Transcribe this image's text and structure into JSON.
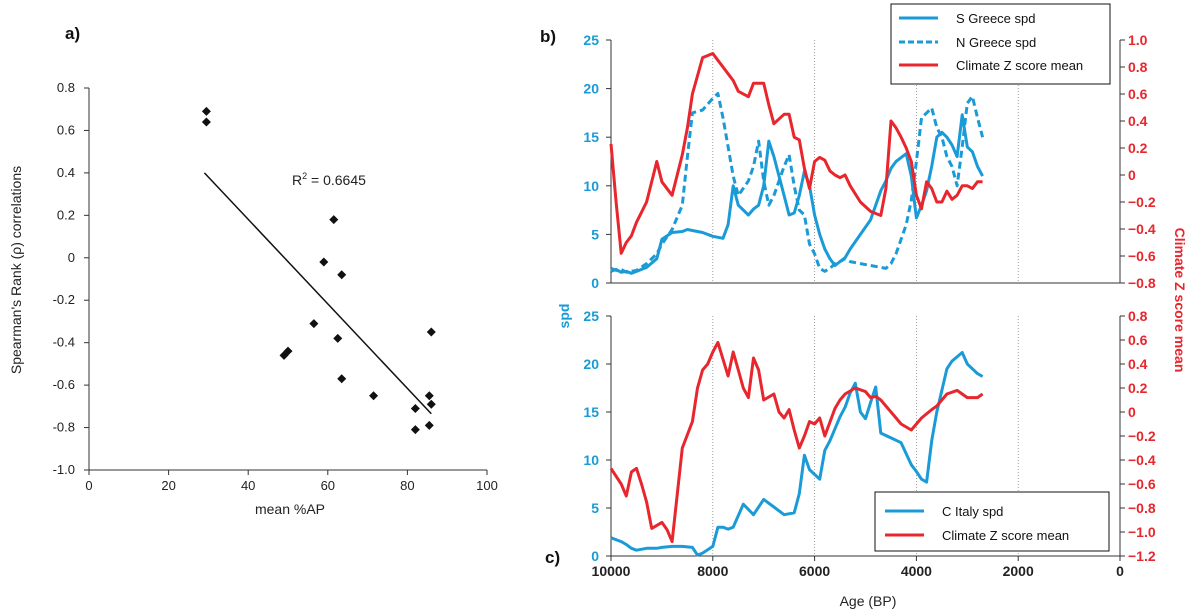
{
  "colors": {
    "blue": "#1a9bd7",
    "red": "#e8262d",
    "black": "#111111",
    "grid": "#888888"
  },
  "chart_data": [
    {
      "id": "a",
      "type": "scatter",
      "panel_label": "a)",
      "xlabel": "mean %AP",
      "ylabel": "Spearman's Rank (ρ) correlations",
      "xlim": [
        0,
        100
      ],
      "ylim": [
        -1.0,
        0.8
      ],
      "xticks": [
        "0",
        "20",
        "40",
        "60",
        "80",
        "100"
      ],
      "yticks": [
        "0.8",
        "0.6",
        "0.4",
        "0.2",
        "0",
        "-0.2",
        "-0.4",
        "-0.6",
        "-0.8",
        "-1.0"
      ],
      "points": [
        {
          "x": 29.5,
          "y": 0.69
        },
        {
          "x": 29.5,
          "y": 0.64
        },
        {
          "x": 49,
          "y": -0.46
        },
        {
          "x": 50,
          "y": -0.44
        },
        {
          "x": 56.5,
          "y": -0.31
        },
        {
          "x": 59,
          "y": -0.02
        },
        {
          "x": 61.5,
          "y": 0.18
        },
        {
          "x": 62.5,
          "y": -0.38
        },
        {
          "x": 63.5,
          "y": -0.08
        },
        {
          "x": 63.5,
          "y": -0.57
        },
        {
          "x": 71.5,
          "y": -0.65
        },
        {
          "x": 82,
          "y": -0.71
        },
        {
          "x": 82,
          "y": -0.81
        },
        {
          "x": 85.5,
          "y": -0.65
        },
        {
          "x": 85.5,
          "y": -0.79
        },
        {
          "x": 86,
          "y": -0.69
        },
        {
          "x": 86,
          "y": -0.35
        }
      ],
      "trendline": {
        "x": [
          29,
          86
        ],
        "y": [
          0.4,
          -0.735
        ]
      },
      "annotation": {
        "text_main": "R",
        "text_sup": "2",
        "text_rest": " = 0.6645"
      }
    },
    {
      "id": "b",
      "type": "line",
      "panel_label": "b)",
      "xlim": [
        10000,
        0
      ],
      "ylim_left": [
        0,
        25
      ],
      "ylim_right": [
        -0.8,
        1.0
      ],
      "yticks_left": [
        "0",
        "5",
        "10",
        "15",
        "20",
        "25"
      ],
      "yticks_right": [
        "1.0",
        "0.8",
        "0.6",
        "0.4",
        "0.2",
        "0",
        "-0.2",
        "-0.4",
        "-0.6",
        "-0.8"
      ],
      "gridlines_x": [
        8000,
        6000,
        4000,
        2000
      ],
      "legend": {
        "placement": "top-right"
      },
      "series": [
        {
          "name": "S Greece spd",
          "axis": "left",
          "color": "blue",
          "style": "solid",
          "x": [
            10000,
            9900,
            9800,
            9700,
            9600,
            9500,
            9300,
            9100,
            9000,
            8800,
            8600,
            8500,
            8400,
            8200,
            8000,
            7900,
            7800,
            7700,
            7600,
            7500,
            7300,
            7200,
            7100,
            7000,
            6900,
            6800,
            6600,
            6500,
            6400,
            6300,
            6200,
            6100,
            6000,
            5900,
            5800,
            5700,
            5600,
            5500,
            5400,
            5300,
            5100,
            4900,
            4700,
            4600,
            4500,
            4400,
            4300,
            4200,
            4100,
            4000,
            3900,
            3800,
            3700,
            3600,
            3500,
            3400,
            3300,
            3200,
            3100,
            3000,
            2900,
            2800,
            2700
          ],
          "y": [
            1.2,
            1.4,
            1.1,
            1.2,
            1.0,
            1.2,
            1.6,
            2.5,
            4.5,
            5.2,
            5.3,
            5.5,
            5.4,
            5.2,
            4.8,
            4.7,
            4.6,
            6.0,
            10.0,
            8.0,
            7.0,
            7.6,
            8.0,
            10.0,
            14.6,
            13.0,
            9.0,
            7.0,
            7.2,
            9.0,
            11.5,
            10.0,
            7.0,
            5.0,
            3.5,
            2.5,
            1.8,
            2.2,
            2.6,
            3.5,
            5.0,
            6.5,
            9.5,
            10.5,
            11.8,
            12.5,
            12.9,
            13.3,
            11.0,
            6.7,
            8.0,
            9.5,
            12.0,
            15.0,
            15.5,
            15.0,
            14.2,
            13.0,
            17.3,
            14.0,
            13.5,
            12.0,
            11.0
          ]
        },
        {
          "name": "N Greece spd",
          "axis": "left",
          "color": "blue",
          "style": "dashed",
          "x": [
            10000,
            9900,
            9800,
            9700,
            9600,
            9500,
            9300,
            9100,
            9000,
            8800,
            8600,
            8500,
            8400,
            8200,
            8000,
            7900,
            7800,
            7700,
            7600,
            7500,
            7300,
            7200,
            7100,
            7000,
            6900,
            6800,
            6600,
            6500,
            6400,
            6300,
            6200,
            6100,
            6000,
            5900,
            5800,
            5700,
            5600,
            5500,
            5400,
            5300,
            5100,
            4900,
            4700,
            4600,
            4500,
            4400,
            4300,
            4200,
            4100,
            4000,
            3900,
            3800,
            3700,
            3600,
            3500,
            3400,
            3300,
            3200,
            3100,
            3000,
            2900,
            2800,
            2700
          ],
          "y": [
            1.5,
            1.3,
            1.4,
            1.1,
            1.2,
            1.3,
            2.0,
            3.0,
            4.0,
            5.5,
            8.0,
            13.0,
            17.5,
            17.8,
            19.0,
            19.5,
            17.0,
            14.0,
            11.0,
            9.0,
            10.5,
            12.0,
            14.6,
            10.5,
            8.0,
            9.0,
            12.0,
            13.2,
            10.0,
            7.5,
            7.0,
            4.0,
            3.0,
            1.5,
            1.2,
            1.5,
            2.0,
            2.2,
            2.5,
            2.2,
            2.0,
            1.8,
            1.6,
            1.5,
            2.0,
            3.0,
            4.5,
            6.0,
            8.5,
            12.5,
            17.0,
            17.5,
            18.0,
            16.0,
            15.0,
            13.0,
            12.0,
            10.0,
            14.0,
            18.5,
            19.2,
            17.0,
            15.0
          ]
        },
        {
          "name": "Climate Z score mean",
          "axis": "right",
          "color": "red",
          "style": "solid",
          "x": [
            10000,
            9900,
            9800,
            9700,
            9600,
            9500,
            9300,
            9100,
            9000,
            8800,
            8600,
            8500,
            8400,
            8200,
            8000,
            7900,
            7800,
            7700,
            7600,
            7500,
            7300,
            7200,
            7100,
            7000,
            6900,
            6800,
            6600,
            6500,
            6400,
            6300,
            6200,
            6100,
            6000,
            5900,
            5800,
            5700,
            5600,
            5500,
            5400,
            5300,
            5100,
            4900,
            4700,
            4600,
            4500,
            4400,
            4300,
            4200,
            4100,
            4000,
            3900,
            3800,
            3700,
            3600,
            3500,
            3400,
            3300,
            3200,
            3100,
            3000,
            2900,
            2800,
            2700
          ],
          "y": [
            0.23,
            -0.2,
            -0.58,
            -0.5,
            -0.45,
            -0.35,
            -0.2,
            0.1,
            -0.05,
            -0.15,
            0.15,
            0.35,
            0.6,
            0.87,
            0.9,
            0.85,
            0.8,
            0.75,
            0.7,
            0.62,
            0.58,
            0.68,
            0.68,
            0.68,
            0.52,
            0.38,
            0.45,
            0.45,
            0.28,
            0.26,
            0.05,
            -0.1,
            0.1,
            0.13,
            0.11,
            0.03,
            0.0,
            -0.02,
            0.0,
            -0.08,
            -0.2,
            -0.27,
            -0.3,
            -0.1,
            0.4,
            0.35,
            0.28,
            0.2,
            0.1,
            -0.15,
            -0.25,
            -0.05,
            -0.1,
            -0.2,
            -0.2,
            -0.12,
            -0.18,
            -0.15,
            -0.08,
            -0.08,
            -0.1,
            -0.05,
            -0.05
          ]
        }
      ]
    },
    {
      "id": "c",
      "type": "line",
      "panel_label": "c)",
      "xlabel": "Age (BP)",
      "xlim": [
        10000,
        0
      ],
      "xticks": [
        "10000",
        "8000",
        "6000",
        "4000",
        "2000",
        "0"
      ],
      "ylim_left": [
        0,
        25
      ],
      "ylim_right": [
        -1.2,
        0.8
      ],
      "yticks_left": [
        "0",
        "5",
        "10",
        "15",
        "20",
        "25"
      ],
      "yticks_right": [
        "0.8",
        "0.6",
        "0.4",
        "0.2",
        "0",
        "-0.2",
        "-0.4",
        "-0.6",
        "-0.8",
        "-1.0",
        "-1.2"
      ],
      "gridlines_x": [
        8000,
        6000,
        4000,
        2000
      ],
      "legend": {
        "placement": "bottom-right"
      },
      "series": [
        {
          "name": "C Italy spd",
          "axis": "left",
          "color": "blue",
          "style": "solid",
          "x": [
            10000,
            9800,
            9700,
            9600,
            9500,
            9300,
            9100,
            9000,
            8800,
            8600,
            8400,
            8300,
            8200,
            8000,
            7900,
            7800,
            7700,
            7600,
            7400,
            7200,
            7000,
            6800,
            6600,
            6400,
            6300,
            6200,
            6100,
            5900,
            5800,
            5700,
            5500,
            5400,
            5300,
            5200,
            5100,
            5000,
            4900,
            4800,
            4700,
            4500,
            4300,
            4100,
            4000,
            3900,
            3800,
            3700,
            3600,
            3400,
            3300,
            3100,
            3000,
            2900,
            2800,
            2700
          ],
          "y": [
            1.9,
            1.5,
            1.2,
            0.8,
            0.6,
            0.8,
            0.8,
            0.9,
            1.0,
            1.0,
            0.9,
            0.1,
            0.3,
            1.0,
            3.0,
            3.0,
            2.8,
            3.0,
            5.4,
            4.3,
            5.9,
            5.1,
            4.3,
            4.5,
            6.5,
            10.5,
            9.0,
            8.0,
            11.0,
            12.0,
            14.5,
            15.5,
            17.0,
            18.0,
            15.0,
            14.3,
            16.0,
            17.6,
            12.8,
            12.3,
            11.8,
            9.5,
            8.8,
            8.0,
            7.7,
            12.0,
            15.0,
            19.5,
            20.3,
            21.2,
            20.0,
            19.5,
            19.0,
            18.7
          ]
        },
        {
          "name": "Climate Z score mean",
          "axis": "right",
          "color": "red",
          "style": "solid",
          "x": [
            10000,
            9800,
            9700,
            9600,
            9500,
            9400,
            9300,
            9200,
            9000,
            8900,
            8800,
            8600,
            8400,
            8300,
            8200,
            8100,
            8000,
            7900,
            7700,
            7600,
            7500,
            7400,
            7300,
            7200,
            7100,
            7000,
            6800,
            6700,
            6600,
            6500,
            6400,
            6300,
            6200,
            6100,
            6000,
            5900,
            5800,
            5600,
            5500,
            5400,
            5200,
            5000,
            4900,
            4800,
            4700,
            4500,
            4300,
            4100,
            3900,
            3700,
            3600,
            3400,
            3200,
            3000,
            2800,
            2700
          ],
          "y": [
            -0.47,
            -0.6,
            -0.7,
            -0.5,
            -0.47,
            -0.6,
            -0.75,
            -0.97,
            -0.92,
            -0.98,
            -1.08,
            -0.3,
            -0.08,
            0.2,
            0.35,
            0.4,
            0.5,
            0.58,
            0.3,
            0.5,
            0.35,
            0.2,
            0.12,
            0.45,
            0.35,
            0.1,
            0.15,
            0.0,
            -0.05,
            0.02,
            -0.15,
            -0.3,
            -0.2,
            -0.08,
            -0.1,
            -0.05,
            -0.2,
            0.03,
            0.1,
            0.15,
            0.2,
            0.17,
            0.12,
            0.13,
            0.1,
            0.0,
            -0.1,
            -0.15,
            -0.05,
            0.02,
            0.05,
            0.15,
            0.18,
            0.12,
            0.12,
            0.15
          ]
        }
      ]
    }
  ]
}
